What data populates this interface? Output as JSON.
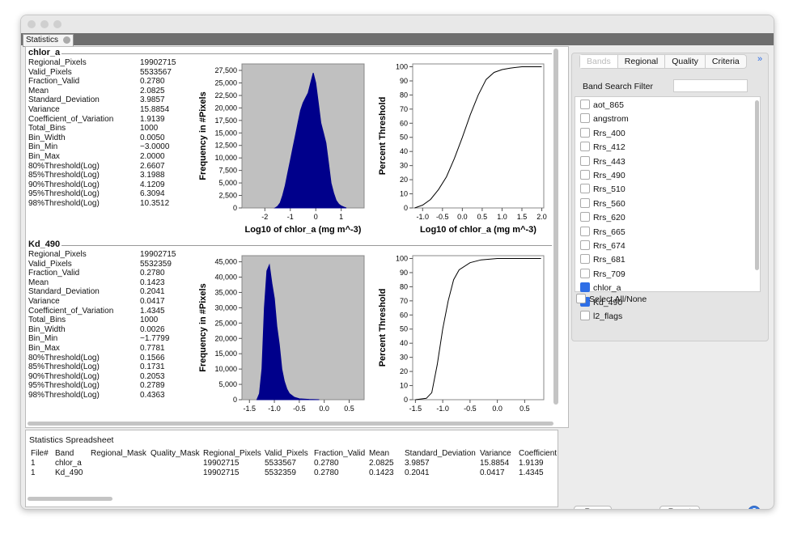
{
  "window": {
    "tab": "Statistics"
  },
  "panels": [
    {
      "band": "chlor_a",
      "stats": [
        [
          "Regional_Pixels",
          "19902715"
        ],
        [
          "Valid_Pixels",
          "5533567"
        ],
        [
          "Fraction_Valid",
          "0.2780"
        ],
        [
          "Mean",
          "2.0825"
        ],
        [
          "Standard_Deviation",
          "3.9857"
        ],
        [
          "Variance",
          "15.8854"
        ],
        [
          "Coefficient_of_Variation",
          "1.9139"
        ],
        [
          "Total_Bins",
          "1000"
        ],
        [
          "Bin_Width",
          "0.0050"
        ],
        [
          "Bin_Min",
          "−3.0000"
        ],
        [
          "Bin_Max",
          "2.0000"
        ],
        [
          "80%Threshold(Log)",
          "2.6607"
        ],
        [
          "85%Threshold(Log)",
          "3.1988"
        ],
        [
          "90%Threshold(Log)",
          "4.1209"
        ],
        [
          "95%Threshold(Log)",
          "6.3094"
        ],
        [
          "98%Threshold(Log)",
          "10.3512"
        ]
      ],
      "histogram": {
        "type": "area",
        "x_label": "Log10 of chlor_a (mg m^-3)",
        "y_label": "Frequency in #Pixels",
        "color": "#00008b",
        "background": "#c0c0c0",
        "x": [
          -1.6,
          -1.5,
          -1.4,
          -1.3,
          -1.2,
          -1.1,
          -1.0,
          -0.9,
          -0.8,
          -0.7,
          -0.6,
          -0.5,
          -0.4,
          -0.3,
          -0.2,
          -0.1,
          0.0,
          0.1,
          0.2,
          0.3,
          0.4,
          0.5,
          0.6,
          0.7,
          0.8,
          0.9,
          1.0,
          1.1,
          1.2
        ],
        "values": [
          0,
          300,
          1000,
          2500,
          4500,
          7000,
          9500,
          12000,
          14500,
          17000,
          19500,
          21000,
          22000,
          23000,
          25000,
          27000,
          25000,
          21000,
          17000,
          15000,
          13000,
          9000,
          5000,
          3000,
          1500,
          800,
          400,
          200,
          0
        ],
        "xlim": [
          -2.9,
          1.9
        ],
        "ylim": [
          0,
          28800
        ],
        "xticks": [
          -2,
          -1,
          0,
          1
        ],
        "yticks": [
          0,
          {
            "value": 2500,
            "label": "2,500"
          },
          {
            "value": 5000,
            "label": "5,000"
          },
          {
            "value": 7500,
            "label": "7,500"
          },
          {
            "value": 10000,
            "label": "10,000"
          },
          {
            "value": 12500,
            "label": "12,500"
          },
          {
            "value": 15000,
            "label": "15,000"
          },
          {
            "value": 17500,
            "label": "17,500"
          },
          {
            "value": 20000,
            "label": "20,000"
          },
          {
            "value": 22500,
            "label": "22,500"
          },
          {
            "value": 25000,
            "label": "25,000"
          },
          {
            "value": 27500,
            "label": "27,500"
          }
        ]
      },
      "cumulative": {
        "type": "line",
        "x_label": "Log10 of chlor_a (mg m^-3)",
        "y_label": "Percent Threshold",
        "color": "#000000",
        "background": "#ffffff",
        "x": [
          -1.2,
          -1.0,
          -0.8,
          -0.6,
          -0.4,
          -0.2,
          0.0,
          0.2,
          0.4,
          0.6,
          0.8,
          1.0,
          1.2,
          1.5,
          2.0
        ],
        "values": [
          0,
          2,
          6,
          13,
          22,
          35,
          50,
          66,
          80,
          91,
          96,
          98,
          99,
          100,
          100
        ],
        "xlim": [
          -1.25,
          2.05
        ],
        "ylim": [
          0,
          102
        ],
        "xticks": [
          {
            "value": -1,
            "label": "-1.0"
          },
          -0.5,
          {
            "value": 0,
            "label": "0.0"
          },
          0.5,
          {
            "value": 1,
            "label": "1.0"
          },
          1.5,
          {
            "value": 2,
            "label": "2.0"
          }
        ],
        "yticks": [
          0,
          10,
          20,
          30,
          40,
          50,
          60,
          70,
          80,
          90,
          100
        ]
      }
    },
    {
      "band": "Kd_490",
      "stats": [
        [
          "Regional_Pixels",
          "19902715"
        ],
        [
          "Valid_Pixels",
          "5532359"
        ],
        [
          "Fraction_Valid",
          "0.2780"
        ],
        [
          "Mean",
          "0.1423"
        ],
        [
          "Standard_Deviation",
          "0.2041"
        ],
        [
          "Variance",
          "0.0417"
        ],
        [
          "Coefficient_of_Variation",
          "1.4345"
        ],
        [
          "Total_Bins",
          "1000"
        ],
        [
          "Bin_Width",
          "0.0026"
        ],
        [
          "Bin_Min",
          "−1.7799"
        ],
        [
          "Bin_Max",
          "0.7781"
        ],
        [
          "80%Threshold(Log)",
          "0.1566"
        ],
        [
          "85%Threshold(Log)",
          "0.1731"
        ],
        [
          "90%Threshold(Log)",
          "0.2053"
        ],
        [
          "95%Threshold(Log)",
          "0.2789"
        ],
        [
          "98%Threshold(Log)",
          "0.4363"
        ]
      ],
      "histogram": {
        "type": "area",
        "y_label": "Frequency in #Pixels",
        "color": "#00008b",
        "background": "#c0c0c0",
        "x": [
          -1.35,
          -1.3,
          -1.25,
          -1.2,
          -1.15,
          -1.1,
          -1.05,
          -1.0,
          -0.95,
          -0.9,
          -0.85,
          -0.8,
          -0.75,
          -0.7,
          -0.6,
          -0.5,
          -0.3,
          -0.1
        ],
        "values": [
          0,
          2000,
          10000,
          30000,
          42000,
          44000,
          38000,
          33000,
          24000,
          18000,
          10000,
          6000,
          3500,
          2000,
          800,
          300,
          100,
          0
        ],
        "xlim": [
          -1.65,
          0.8
        ],
        "ylim": [
          0,
          47000
        ],
        "xticks": [
          -1.5,
          {
            "value": -1,
            "label": "-1.0"
          },
          -0.5,
          {
            "value": 0,
            "label": "0.0"
          },
          0.5
        ],
        "yticks": [
          0,
          {
            "value": 5000,
            "label": "5,000"
          },
          {
            "value": 10000,
            "label": "10,000"
          },
          {
            "value": 15000,
            "label": "15,000"
          },
          {
            "value": 20000,
            "label": "20,000"
          },
          {
            "value": 25000,
            "label": "25,000"
          },
          {
            "value": 30000,
            "label": "30,000"
          },
          {
            "value": 35000,
            "label": "35,000"
          },
          {
            "value": 40000,
            "label": "40,000"
          },
          {
            "value": 45000,
            "label": "45,000"
          }
        ]
      },
      "cumulative": {
        "type": "line",
        "y_label": "Percent Threshold",
        "color": "#000000",
        "background": "#ffffff",
        "x": [
          -1.5,
          -1.3,
          -1.2,
          -1.1,
          -1.0,
          -0.9,
          -0.8,
          -0.7,
          -0.5,
          -0.3,
          0.0,
          0.8
        ],
        "values": [
          0,
          1,
          5,
          25,
          50,
          70,
          85,
          92,
          97,
          99,
          100,
          100
        ],
        "xlim": [
          -1.55,
          0.85
        ],
        "ylim": [
          0,
          102
        ],
        "xticks": [
          -1.5,
          {
            "value": -1,
            "label": "-1.0"
          },
          -0.5,
          {
            "value": 0,
            "label": "0.0"
          },
          0.5
        ],
        "yticks": [
          0,
          10,
          20,
          30,
          40,
          50,
          60,
          70,
          80,
          90,
          100
        ]
      }
    }
  ],
  "spreadsheet": {
    "title": "Statistics Spreadsheet",
    "columns": [
      "File#",
      "Band",
      "Regional_Mask",
      "Quality_Mask",
      "Regional_Pixels",
      "Valid_Pixels",
      "Fraction_Valid",
      "Mean",
      "Standard_Deviation",
      "Variance",
      "Coefficient"
    ],
    "rows": [
      [
        "1",
        "chlor_a",
        null,
        null,
        "19902715",
        "5533567",
        "0.2780",
        "2.0825",
        "3.9857",
        "15.8854",
        "1.9139"
      ],
      [
        "1",
        "Kd_490",
        null,
        null,
        "19902715",
        "5532359",
        "0.2780",
        "0.1423",
        "0.2041",
        "0.0417",
        "1.4345"
      ]
    ]
  },
  "side": {
    "tabs": [
      "Bands",
      "Regional",
      "Quality",
      "Criteria"
    ],
    "filter_label": "Band Search Filter",
    "bands": [
      {
        "name": "aot_865",
        "checked": false
      },
      {
        "name": "angstrom",
        "checked": false
      },
      {
        "name": "Rrs_400",
        "checked": false
      },
      {
        "name": "Rrs_412",
        "checked": false
      },
      {
        "name": "Rrs_443",
        "checked": false
      },
      {
        "name": "Rrs_490",
        "checked": false
      },
      {
        "name": "Rrs_510",
        "checked": false
      },
      {
        "name": "Rrs_560",
        "checked": false
      },
      {
        "name": "Rrs_620",
        "checked": false
      },
      {
        "name": "Rrs_665",
        "checked": false
      },
      {
        "name": "Rrs_674",
        "checked": false
      },
      {
        "name": "Rrs_681",
        "checked": false
      },
      {
        "name": "Rrs_709",
        "checked": false
      },
      {
        "name": "chlor_a",
        "checked": true
      },
      {
        "name": "Kd_490",
        "checked": true
      },
      {
        "name": "l2_flags",
        "checked": false
      }
    ],
    "select_all": "Select All/None",
    "buttons": [
      "Run",
      "Reset"
    ]
  }
}
